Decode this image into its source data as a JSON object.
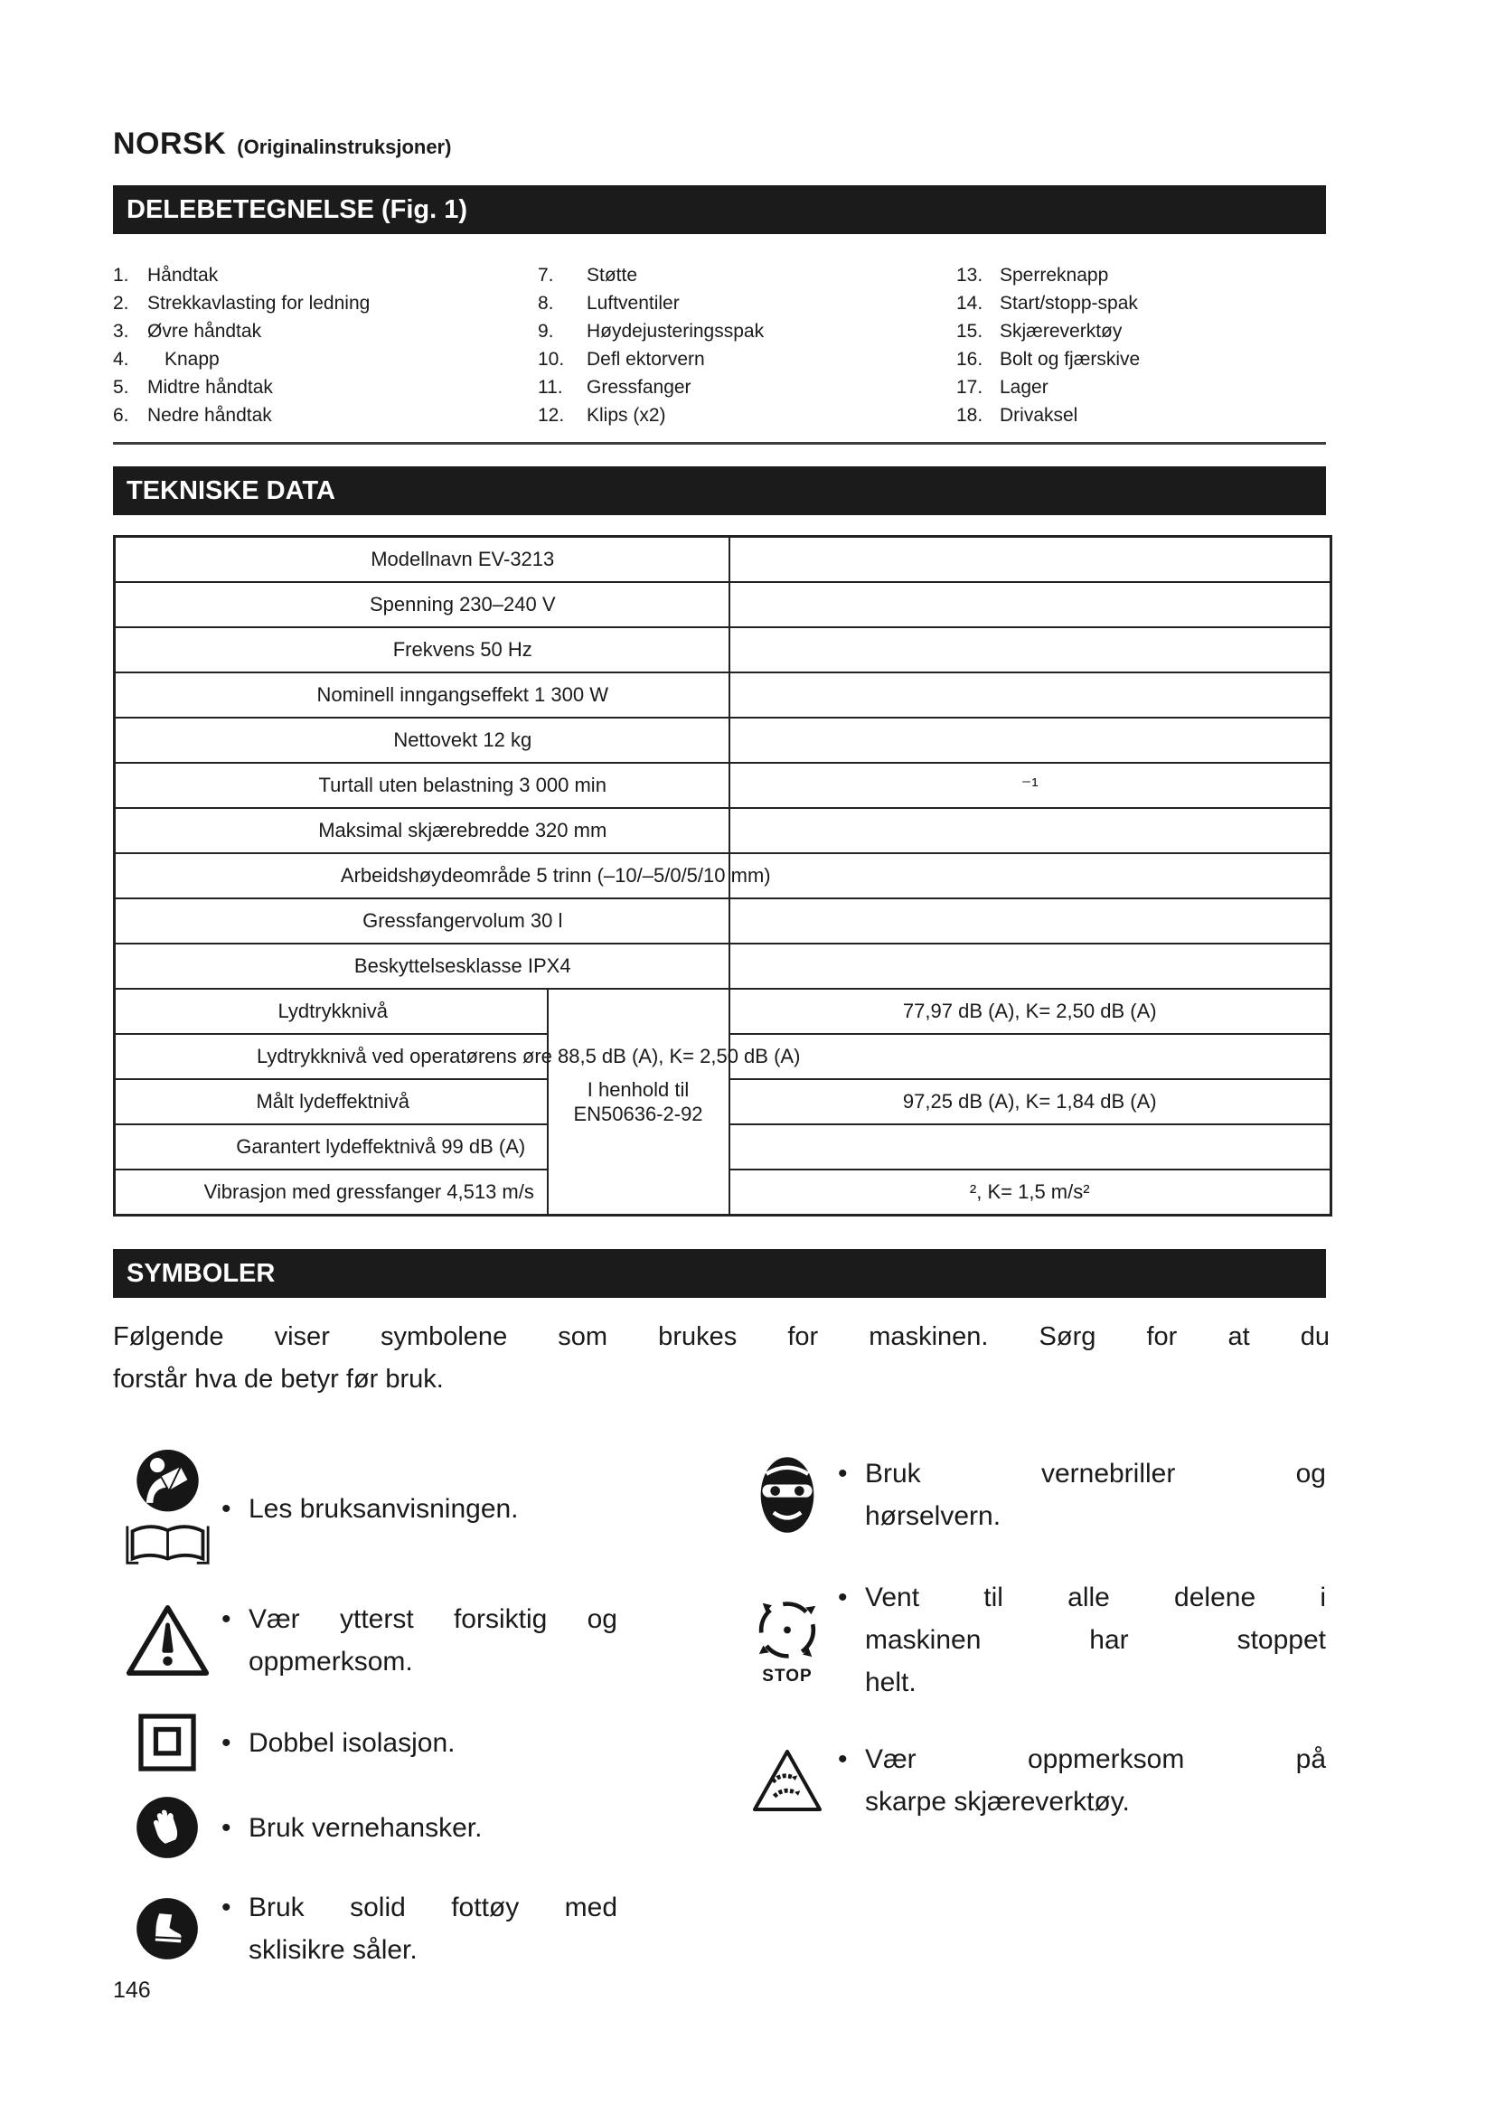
{
  "header": {
    "title": "NORSK",
    "subtitle": "(Originalinstruksjoner)"
  },
  "footer": {
    "page_number": "146"
  },
  "parts": {
    "title": "DELEBETEGNELSE (Fig. 1)",
    "columns": [
      [
        {
          "num": "1.",
          "label": "Håndtak"
        },
        {
          "num": "2.",
          "label": "Strekkavlasting for ledning"
        },
        {
          "num": "3.",
          "label": "Øvre håndtak"
        },
        {
          "num": "4.",
          "label": "Knapp"
        },
        {
          "num": "5.",
          "label": "Midtre håndtak"
        },
        {
          "num": "6.",
          "label": "Nedre håndtak"
        }
      ],
      [
        {
          "num": "7.",
          "label": "Støtte"
        },
        {
          "num": "8.",
          "label": "Luftventiler"
        },
        {
          "num": "9.",
          "label": "Høydejusteringsspak"
        },
        {
          "num": "10.",
          "label": "Defl ektorvern"
        },
        {
          "num": "11.",
          "label": "Gressfanger"
        },
        {
          "num": "12.",
          "label": "Klips (x2)"
        }
      ],
      [
        {
          "num": "13.",
          "label": "Sperreknapp"
        },
        {
          "num": "14.",
          "label": "Start/stopp-spak"
        },
        {
          "num": "15.",
          "label": "Skjæreverktøy"
        },
        {
          "num": "16.",
          "label": "Bolt og fjærskive"
        },
        {
          "num": "17.",
          "label": "Lager"
        },
        {
          "num": "18.",
          "label": "Drivaksel"
        }
      ]
    ]
  },
  "technical": {
    "title": "TEKNISKE DATA",
    "compliance_lines": [
      "I henhold til",
      "EN50636-2-92"
    ],
    "rows": [
      {
        "label": "Modellnavn EV-3213",
        "value": ""
      },
      {
        "label": "Spenning 230–240 V",
        "value": ""
      },
      {
        "label": "Frekvens 50 Hz",
        "value": ""
      },
      {
        "label": "Nominell inngangseffekt 1 300 W",
        "value": ""
      },
      {
        "label": "Nettovekt 12 kg",
        "value": ""
      },
      {
        "label": "Turtall uten belastning 3 000 min",
        "value": "⁻¹"
      },
      {
        "label": "Maksimal skjærebredde 320 mm",
        "value": ""
      },
      {
        "label": "Arbeidshøydeområde 5 trinn (–10/–5/0/5/10 mm)",
        "value": ""
      },
      {
        "label": "Gressfangervolum 30 l",
        "value": ""
      },
      {
        "label": "Beskyttelsesklasse IPX4",
        "value": ""
      },
      {
        "label": "Lydtrykknivå",
        "value": "77,97 dB (A), K= 2,50 dB (A)"
      },
      {
        "label": "Lydtrykknivå ved operatørens øre 88,5 dB (A), K= 2,50 dB (A)",
        "value": ""
      },
      {
        "label": "Målt lydeffektnivå",
        "value": "97,25 dB (A), K= 1,84 dB (A)"
      },
      {
        "label": "Garantert lydeffektnivå 99 dB (A)",
        "value": ""
      },
      {
        "label": "Vibrasjon med gressfanger 4,513 m/s",
        "value": "², K= 1,5 m/s²"
      }
    ]
  },
  "symbols": {
    "title": "SYMBOLER",
    "intro_lines": [
      "Følgende viser symbolene som brukes for maskinen. Sørg for at du",
      "forstår hva de betyr før bruk."
    ],
    "bullet": "•",
    "left": [
      {
        "icon": "read-manual-icon",
        "lines": [
          "Les bruksanvisningen."
        ]
      },
      {
        "icon": "warning-triangle-icon",
        "lines": [
          "Vær ytterst forsiktig og",
          "oppmerksom."
        ]
      },
      {
        "icon": "double-insulation-icon",
        "lines": [
          "Dobbel isolasjon."
        ]
      },
      {
        "icon": "protective-gloves-icon",
        "lines": [
          "Bruk vernehansker."
        ]
      },
      {
        "icon": "protective-boots-icon",
        "lines": [
          "Bruk solid fottøy med",
          "sklisikre såler."
        ]
      }
    ],
    "right": [
      {
        "icon": "eye-ear-protection-icon",
        "lines": [
          "Bruk vernebriller og",
          "hørselvern."
        ]
      },
      {
        "icon": "stop-rotation-icon",
        "icon_label": "STOP",
        "lines": [
          "Vent til alle delene i",
          "maskinen har stoppet",
          "helt."
        ]
      },
      {
        "icon": "sharp-blade-icon",
        "lines": [
          "Vær oppmerksom på",
          "skarpe skjæreverktøy."
        ]
      }
    ]
  }
}
